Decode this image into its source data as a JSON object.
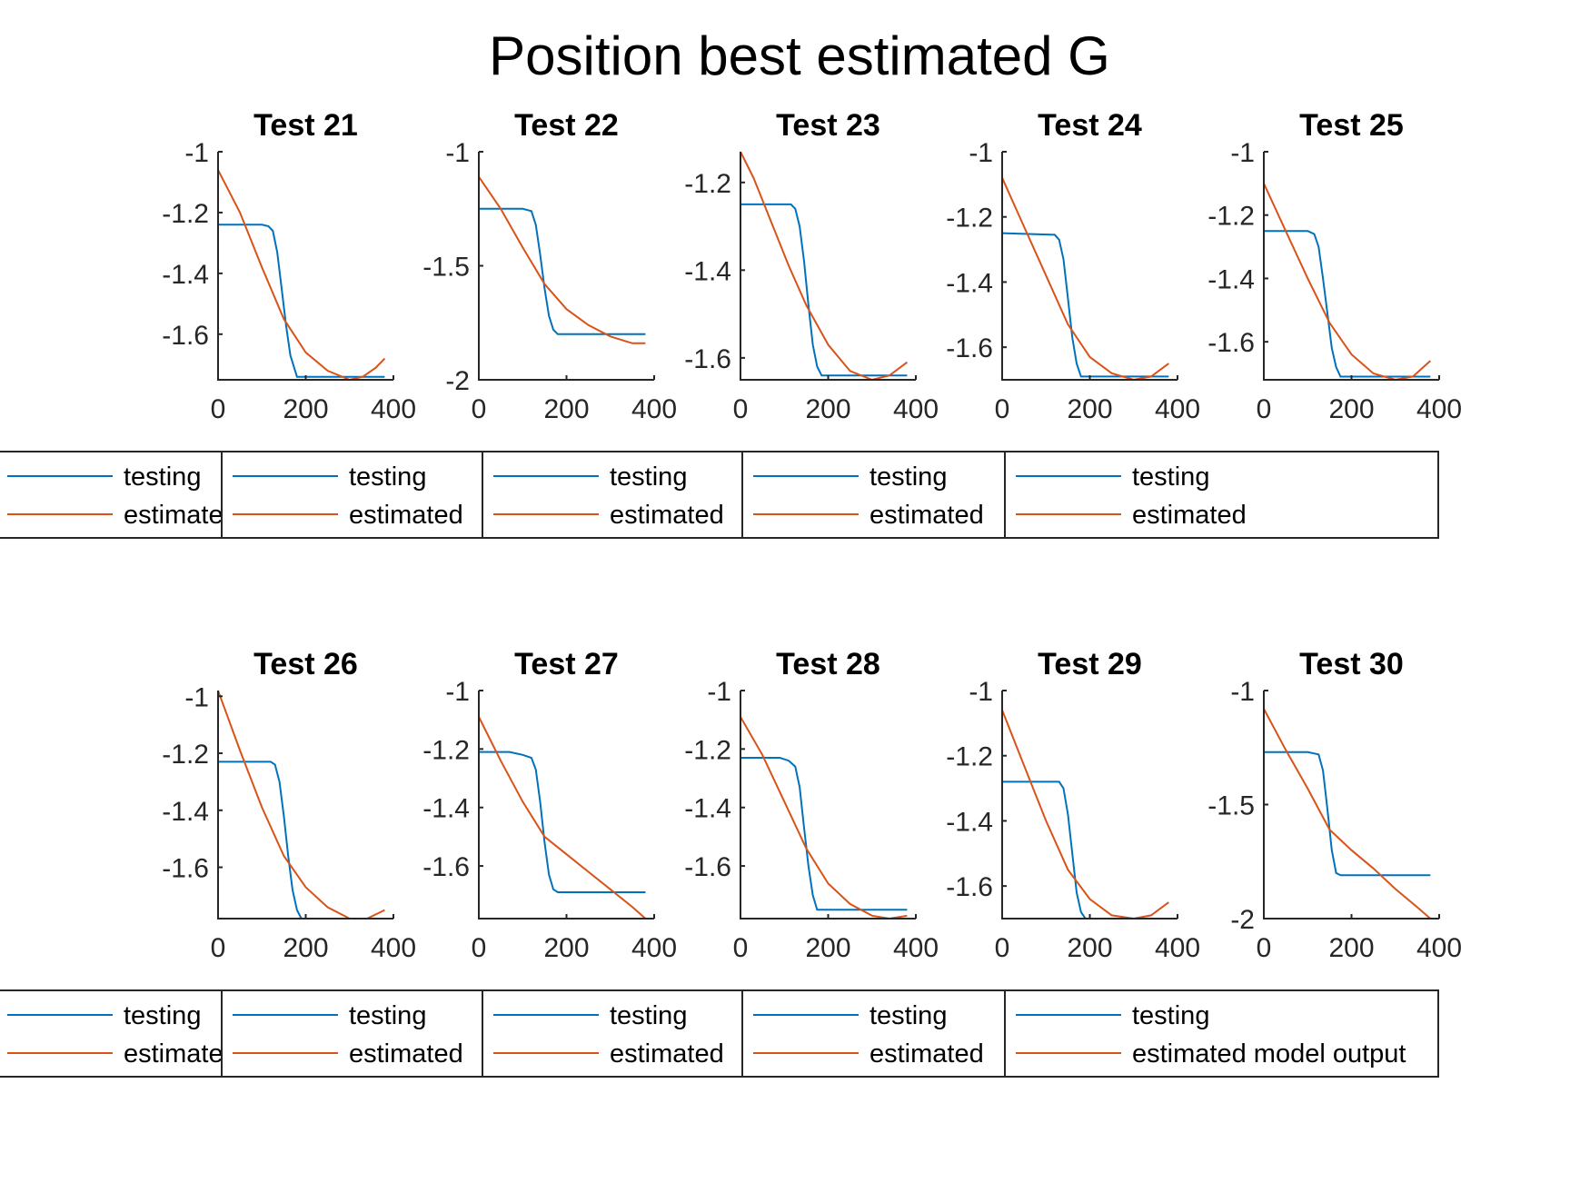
{
  "figure": {
    "title": "Position best estimated G"
  },
  "colors": {
    "testing": "#0072BD",
    "estimated": "#D95319",
    "axis": "#262626"
  },
  "chart_data": [
    {
      "type": "line",
      "title": "Test 21",
      "xlim": [
        0,
        400
      ],
      "ylim": [
        -1.75,
        -1.0
      ],
      "xticks": [
        0,
        200,
        400
      ],
      "yticks": [
        -1.6,
        -1.4,
        -1.2,
        -1
      ],
      "xtick_labels": [
        "0",
        "200",
        "400"
      ],
      "ytick_labels": [
        "-1.6",
        "-1.4",
        "-1.2",
        "-1"
      ],
      "legend": [
        "testing",
        "estimated"
      ],
      "series": [
        {
          "name": "testing",
          "x": [
            0,
            100,
            115,
            125,
            135,
            145,
            155,
            165,
            180,
            200,
            300,
            380
          ],
          "y": [
            -1.24,
            -1.24,
            -1.245,
            -1.26,
            -1.33,
            -1.45,
            -1.57,
            -1.67,
            -1.74,
            -1.74,
            -1.74,
            -1.74
          ]
        },
        {
          "name": "estimated",
          "x": [
            0,
            50,
            100,
            150,
            200,
            250,
            300,
            330,
            360,
            380
          ],
          "y": [
            -1.06,
            -1.2,
            -1.38,
            -1.55,
            -1.66,
            -1.72,
            -1.75,
            -1.74,
            -1.71,
            -1.68
          ]
        }
      ]
    },
    {
      "type": "line",
      "title": "Test 22",
      "xlim": [
        0,
        400
      ],
      "ylim": [
        -2.0,
        -1.0
      ],
      "xticks": [
        0,
        200,
        400
      ],
      "yticks": [
        -2,
        -1.5,
        -1
      ],
      "xtick_labels": [
        "0",
        "200",
        "400"
      ],
      "ytick_labels": [
        "-2",
        "-1.5",
        "-1"
      ],
      "legend": [
        "testing",
        "estimated"
      ],
      "series": [
        {
          "name": "testing",
          "x": [
            0,
            100,
            120,
            130,
            140,
            150,
            160,
            170,
            180,
            200,
            300,
            380
          ],
          "y": [
            -1.25,
            -1.25,
            -1.26,
            -1.32,
            -1.45,
            -1.6,
            -1.72,
            -1.78,
            -1.8,
            -1.8,
            -1.8,
            -1.8
          ]
        },
        {
          "name": "estimated",
          "x": [
            0,
            50,
            100,
            150,
            200,
            250,
            300,
            350,
            380
          ],
          "y": [
            -1.11,
            -1.25,
            -1.42,
            -1.58,
            -1.69,
            -1.76,
            -1.81,
            -1.84,
            -1.84
          ]
        }
      ]
    },
    {
      "type": "line",
      "title": "Test 23",
      "xlim": [
        0,
        400
      ],
      "ylim": [
        -1.65,
        -1.13
      ],
      "xticks": [
        0,
        200,
        400
      ],
      "yticks": [
        -1.6,
        -1.4,
        -1.2
      ],
      "xtick_labels": [
        "0",
        "200",
        "400"
      ],
      "ytick_labels": [
        "-1.6",
        "-1.4",
        "-1.2"
      ],
      "legend": [
        "testing",
        "estimated"
      ],
      "series": [
        {
          "name": "testing",
          "x": [
            0,
            115,
            125,
            135,
            145,
            155,
            165,
            175,
            185,
            200,
            300,
            380
          ],
          "y": [
            -1.25,
            -1.25,
            -1.26,
            -1.3,
            -1.38,
            -1.48,
            -1.57,
            -1.62,
            -1.64,
            -1.64,
            -1.64,
            -1.64
          ]
        },
        {
          "name": "estimated",
          "x": [
            0,
            30,
            70,
            110,
            150,
            200,
            250,
            300,
            340,
            380
          ],
          "y": [
            -1.13,
            -1.19,
            -1.29,
            -1.39,
            -1.48,
            -1.57,
            -1.63,
            -1.65,
            -1.64,
            -1.61
          ]
        }
      ]
    },
    {
      "type": "line",
      "title": "Test 24",
      "xlim": [
        0,
        400
      ],
      "ylim": [
        -1.7,
        -1.0
      ],
      "xticks": [
        0,
        200,
        400
      ],
      "yticks": [
        -1.6,
        -1.4,
        -1.2,
        -1
      ],
      "xtick_labels": [
        "0",
        "200",
        "400"
      ],
      "ytick_labels": [
        "-1.6",
        "-1.4",
        "-1.2",
        "-1"
      ],
      "legend": [
        "testing",
        "estimated"
      ],
      "series": [
        {
          "name": "testing",
          "x": [
            0,
            120,
            130,
            140,
            150,
            160,
            170,
            180,
            190,
            200,
            300,
            380
          ],
          "y": [
            -1.25,
            -1.255,
            -1.27,
            -1.33,
            -1.45,
            -1.57,
            -1.65,
            -1.69,
            -1.69,
            -1.69,
            -1.69,
            -1.69
          ]
        },
        {
          "name": "estimated",
          "x": [
            0,
            50,
            100,
            150,
            200,
            250,
            300,
            340,
            380
          ],
          "y": [
            -1.08,
            -1.23,
            -1.38,
            -1.53,
            -1.63,
            -1.68,
            -1.7,
            -1.69,
            -1.65
          ]
        }
      ]
    },
    {
      "type": "line",
      "title": "Test 25",
      "xlim": [
        0,
        400
      ],
      "ylim": [
        -1.72,
        -1.0
      ],
      "xticks": [
        0,
        200,
        400
      ],
      "yticks": [
        -1.6,
        -1.4,
        -1.2,
        -1
      ],
      "xtick_labels": [
        "0",
        "200",
        "400"
      ],
      "ytick_labels": [
        "-1.6",
        "-1.4",
        "-1.2",
        "-1"
      ],
      "legend": [
        "testing",
        "estimated"
      ],
      "series": [
        {
          "name": "testing",
          "x": [
            0,
            80,
            100,
            115,
            125,
            135,
            145,
            155,
            165,
            175,
            200,
            300,
            380
          ],
          "y": [
            -1.25,
            -1.25,
            -1.25,
            -1.26,
            -1.3,
            -1.4,
            -1.51,
            -1.62,
            -1.68,
            -1.71,
            -1.71,
            -1.71,
            -1.71
          ]
        },
        {
          "name": "estimated",
          "x": [
            0,
            50,
            100,
            150,
            200,
            250,
            300,
            340,
            380
          ],
          "y": [
            -1.1,
            -1.25,
            -1.4,
            -1.54,
            -1.64,
            -1.7,
            -1.72,
            -1.71,
            -1.66
          ]
        }
      ]
    },
    {
      "type": "line",
      "title": "Test 26",
      "xlim": [
        0,
        400
      ],
      "ylim": [
        -1.78,
        -0.98
      ],
      "xticks": [
        0,
        200,
        400
      ],
      "yticks": [
        -1.6,
        -1.4,
        -1.2,
        -1
      ],
      "xtick_labels": [
        "0",
        "200",
        "400"
      ],
      "ytick_labels": [
        "-1.6",
        "-1.4",
        "-1.2",
        "-1"
      ],
      "legend": [
        "testing",
        "estimated"
      ],
      "series": [
        {
          "name": "testing",
          "x": [
            0,
            120,
            130,
            140,
            150,
            160,
            170,
            180,
            190,
            200,
            300,
            380
          ],
          "y": [
            -1.23,
            -1.23,
            -1.24,
            -1.3,
            -1.42,
            -1.56,
            -1.68,
            -1.75,
            -1.78,
            -1.78,
            -1.78,
            -1.78
          ]
        },
        {
          "name": "estimated",
          "x": [
            0,
            50,
            100,
            150,
            200,
            250,
            300,
            340,
            380
          ],
          "y": [
            -0.98,
            -1.19,
            -1.39,
            -1.56,
            -1.67,
            -1.74,
            -1.78,
            -1.78,
            -1.75
          ]
        }
      ]
    },
    {
      "type": "line",
      "title": "Test 27",
      "xlim": [
        0,
        400
      ],
      "ylim": [
        -1.78,
        -1.0
      ],
      "xticks": [
        0,
        200,
        400
      ],
      "yticks": [
        -1.6,
        -1.4,
        -1.2,
        -1
      ],
      "xtick_labels": [
        "0",
        "200",
        "400"
      ],
      "ytick_labels": [
        "-1.6",
        "-1.4",
        "-1.2",
        "-1"
      ],
      "legend": [
        "testing",
        "estimated"
      ],
      "series": [
        {
          "name": "testing",
          "x": [
            0,
            70,
            100,
            120,
            130,
            140,
            150,
            160,
            170,
            180,
            200,
            300,
            380
          ],
          "y": [
            -1.21,
            -1.21,
            -1.22,
            -1.23,
            -1.27,
            -1.38,
            -1.52,
            -1.63,
            -1.68,
            -1.69,
            -1.69,
            -1.69,
            -1.69
          ]
        },
        {
          "name": "estimated",
          "x": [
            0,
            50,
            100,
            150,
            200,
            250,
            300,
            350,
            380
          ],
          "y": [
            -1.09,
            -1.24,
            -1.38,
            -1.5,
            -1.56,
            -1.62,
            -1.68,
            -1.74,
            -1.78
          ]
        }
      ]
    },
    {
      "type": "line",
      "title": "Test 28",
      "xlim": [
        0,
        400
      ],
      "ylim": [
        -1.78,
        -1.0
      ],
      "xticks": [
        0,
        200,
        400
      ],
      "yticks": [
        -1.6,
        -1.4,
        -1.2,
        -1
      ],
      "xtick_labels": [
        "0",
        "200",
        "400"
      ],
      "ytick_labels": [
        "-1.6",
        "-1.4",
        "-1.2",
        "-1"
      ],
      "legend": [
        "testing",
        "estimated"
      ],
      "series": [
        {
          "name": "testing",
          "x": [
            0,
            90,
            110,
            125,
            135,
            145,
            155,
            165,
            175,
            200,
            300,
            380
          ],
          "y": [
            -1.23,
            -1.23,
            -1.24,
            -1.26,
            -1.33,
            -1.47,
            -1.6,
            -1.7,
            -1.75,
            -1.75,
            -1.75,
            -1.75
          ]
        },
        {
          "name": "estimated",
          "x": [
            0,
            50,
            100,
            150,
            200,
            250,
            300,
            340,
            380
          ],
          "y": [
            -1.09,
            -1.22,
            -1.38,
            -1.54,
            -1.66,
            -1.73,
            -1.77,
            -1.78,
            -1.77
          ]
        }
      ]
    },
    {
      "type": "line",
      "title": "Test 29",
      "xlim": [
        0,
        400
      ],
      "ylim": [
        -1.7,
        -1.0
      ],
      "xticks": [
        0,
        200,
        400
      ],
      "yticks": [
        -1.6,
        -1.4,
        -1.2,
        -1
      ],
      "xtick_labels": [
        "0",
        "200",
        "400"
      ],
      "ytick_labels": [
        "-1.6",
        "-1.4",
        "-1.2",
        "-1"
      ],
      "legend": [
        "testing",
        "estimated"
      ],
      "series": [
        {
          "name": "testing",
          "x": [
            0,
            130,
            140,
            150,
            160,
            170,
            180,
            190,
            200,
            300,
            380
          ],
          "y": [
            -1.28,
            -1.28,
            -1.3,
            -1.38,
            -1.5,
            -1.62,
            -1.68,
            -1.7,
            -1.7,
            -1.7,
            -1.7
          ]
        },
        {
          "name": "estimated",
          "x": [
            0,
            50,
            100,
            150,
            200,
            250,
            300,
            340,
            380
          ],
          "y": [
            -1.06,
            -1.23,
            -1.4,
            -1.55,
            -1.64,
            -1.69,
            -1.7,
            -1.69,
            -1.65
          ]
        }
      ]
    },
    {
      "type": "line",
      "title": "Test 30",
      "xlim": [
        0,
        400
      ],
      "ylim": [
        -2.0,
        -1.0
      ],
      "xticks": [
        0,
        200,
        400
      ],
      "yticks": [
        -2,
        -1.5,
        -1
      ],
      "xtick_labels": [
        "0",
        "200",
        "400"
      ],
      "ytick_labels": [
        "-2",
        "-1.5",
        "-1"
      ],
      "legend": [
        "testing",
        "estimated model output"
      ],
      "series": [
        {
          "name": "testing",
          "x": [
            0,
            100,
            125,
            135,
            145,
            155,
            165,
            175,
            200,
            300,
            380
          ],
          "y": [
            -1.27,
            -1.27,
            -1.28,
            -1.35,
            -1.52,
            -1.7,
            -1.8,
            -1.81,
            -1.81,
            -1.81,
            -1.81
          ]
        },
        {
          "name": "estimated model output",
          "x": [
            0,
            50,
            100,
            150,
            200,
            250,
            300,
            350,
            380
          ],
          "y": [
            -1.08,
            -1.26,
            -1.43,
            -1.61,
            -1.7,
            -1.78,
            -1.87,
            -1.95,
            -2.0
          ]
        }
      ]
    }
  ]
}
